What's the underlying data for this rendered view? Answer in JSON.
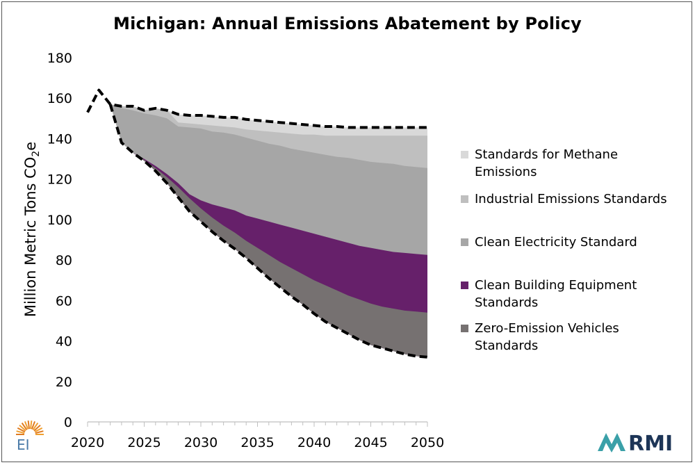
{
  "title": "Michigan: Annual Emissions Abatement by Policy",
  "ylabel_main": "Million Metric Tons CO",
  "ylabel_sub": "2",
  "ylabel_tail": "e",
  "logos": {
    "left": "EI",
    "right": "RMI"
  },
  "colors": {
    "methane": "#d9d9d9",
    "industrial": "#bfbfbf",
    "electricity": "#a6a6a6",
    "building": "#66206a",
    "vehicles": "#767171",
    "rmi_navy": "#1d3557",
    "rmi_teal": "#3aa0a8",
    "ei_orange": "#f0a030",
    "ei_blue": "#4a7aa8"
  },
  "legend": [
    {
      "key": "methane",
      "label": "Standards for Methane Emissions"
    },
    {
      "key": "industrial",
      "label": "Industrial Emissions Standards"
    },
    {
      "key": "electricity",
      "label": "Clean Electricity Standard"
    },
    {
      "key": "building",
      "label": "Clean Building Equipment Standards"
    },
    {
      "key": "vehicles",
      "label": "Zero-Emission Vehicles Standards"
    }
  ],
  "chart_data": {
    "type": "area",
    "title": "Michigan: Annual Emissions Abatement by Policy",
    "ylabel": "Million Metric Tons CO2e",
    "xlim": [
      2020,
      2050
    ],
    "ylim": [
      0,
      180
    ],
    "x_ticks": [
      2020,
      2025,
      2030,
      2035,
      2040,
      2045,
      2050
    ],
    "y_ticks": [
      0,
      20,
      40,
      60,
      80,
      100,
      120,
      140,
      160,
      180
    ],
    "grid": false,
    "legend_position": "right",
    "x": [
      2020,
      2021,
      2022,
      2023,
      2024,
      2025,
      2026,
      2027,
      2028,
      2029,
      2030,
      2031,
      2032,
      2033,
      2034,
      2035,
      2036,
      2037,
      2038,
      2039,
      2040,
      2041,
      2042,
      2043,
      2044,
      2045,
      2046,
      2047,
      2048,
      2049,
      2050
    ],
    "reference_dashed": {
      "x": [
        2020,
        2021,
        2022,
        2023,
        2024,
        2025,
        2026,
        2027,
        2028,
        2029,
        2030,
        2031,
        2032,
        2033,
        2034,
        2035,
        2036,
        2037,
        2038,
        2039,
        2040,
        2041,
        2042,
        2043,
        2044,
        2045,
        2046,
        2047,
        2048,
        2049,
        2050
      ],
      "y": [
        153,
        164,
        157,
        156,
        156,
        154,
        155,
        154,
        152,
        151.5,
        151.5,
        151,
        150.5,
        150.5,
        149.5,
        149,
        148.5,
        148,
        147.5,
        147,
        146.5,
        146,
        146,
        145.5,
        145.5,
        145.5,
        145.5,
        145.5,
        145.5,
        145.5,
        145.5
      ]
    },
    "policy_dashed": {
      "x": [
        2022,
        2023,
        2024,
        2025,
        2026,
        2027,
        2028,
        2029,
        2030,
        2031,
        2032,
        2033,
        2034,
        2035,
        2036,
        2037,
        2038,
        2039,
        2040,
        2041,
        2042,
        2043,
        2044,
        2045,
        2046,
        2047,
        2048,
        2049,
        2050
      ],
      "y": [
        157,
        138,
        133,
        129,
        124,
        118,
        111,
        104,
        99,
        94,
        89.5,
        85.5,
        81,
        76,
        71,
        66.5,
        62,
        58,
        53.5,
        49.5,
        46.5,
        43.5,
        40.5,
        38,
        36.5,
        35,
        33.5,
        32.5,
        32
      ]
    },
    "series": [
      {
        "name": "Zero-Emission Vehicles Standards",
        "key": "vehicles",
        "upper": [
          157,
          138,
          133,
          129.5,
          125.5,
          121,
          116,
          110.5,
          105.5,
          101,
          97,
          93.5,
          89.5,
          86,
          82.5,
          79,
          76,
          73,
          70,
          67.5,
          65,
          62.5,
          60.5,
          58.5,
          57,
          56,
          55,
          54.5,
          54
        ]
      },
      {
        "name": "Clean Building Equipment Standards",
        "key": "building",
        "upper": [
          157,
          138,
          133,
          130,
          126.5,
          122.5,
          118,
          112.5,
          109.5,
          107.5,
          106,
          104.5,
          102,
          100.5,
          99,
          97.5,
          96,
          94.5,
          93,
          91.5,
          90,
          88.5,
          87,
          86,
          85,
          84,
          83.5,
          83,
          82.5
        ]
      },
      {
        "name": "Clean Electricity Standard",
        "key": "electricity",
        "upper": [
          157,
          155,
          154,
          152.5,
          151.5,
          150,
          146,
          145.5,
          145,
          143.5,
          143,
          142,
          140.5,
          139,
          137.5,
          136.5,
          135,
          134,
          133,
          132,
          131,
          130.5,
          129.5,
          128.5,
          128,
          127.5,
          126.5,
          126,
          125.5
        ]
      },
      {
        "name": "Industrial Emissions Standards",
        "key": "industrial",
        "upper": [
          157,
          156,
          156,
          154,
          155,
          154,
          148,
          147.5,
          147,
          146.5,
          146,
          145.5,
          144.5,
          144,
          143.5,
          143,
          142.5,
          142,
          142,
          141.5,
          141.5,
          141.5,
          141.5,
          141.5,
          141.5,
          141.5,
          141.5,
          141.5,
          141.5
        ]
      },
      {
        "name": "Standards for Methane Emissions",
        "key": "methane",
        "upper": [
          157,
          156,
          156,
          154,
          155,
          154,
          152,
          151.5,
          151.5,
          151,
          150.5,
          150.5,
          149.5,
          149,
          148.5,
          148,
          147.5,
          147,
          146.5,
          146,
          146,
          145.5,
          145.5,
          145.5,
          145.5,
          145.5,
          145.5,
          145.5,
          145.5
        ]
      }
    ]
  }
}
